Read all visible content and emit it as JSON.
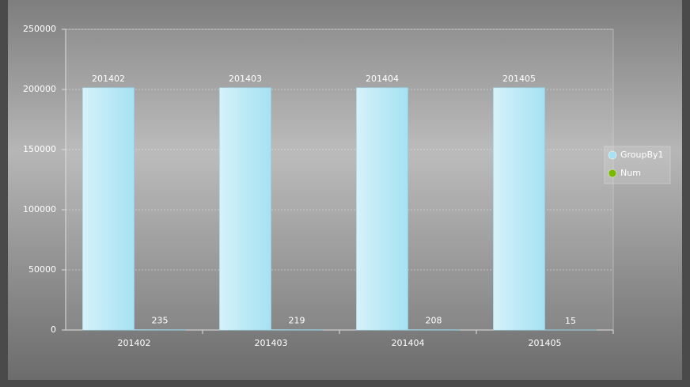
{
  "chart_data": {
    "type": "bar",
    "categories": [
      "201402",
      "201403",
      "201404",
      "201405"
    ],
    "series": [
      {
        "name": "GroupBy1",
        "color": "#a6e2f3",
        "values": [
          201402,
          201403,
          201404,
          201405
        ]
      },
      {
        "name": "Num",
        "color": "#7ab800",
        "values": [
          235,
          219,
          208,
          15
        ]
      }
    ],
    "ylim": [
      0,
      250000
    ],
    "yticks": [
      0,
      50000,
      100000,
      150000,
      200000,
      250000
    ],
    "grid": true,
    "legend": "right"
  }
}
